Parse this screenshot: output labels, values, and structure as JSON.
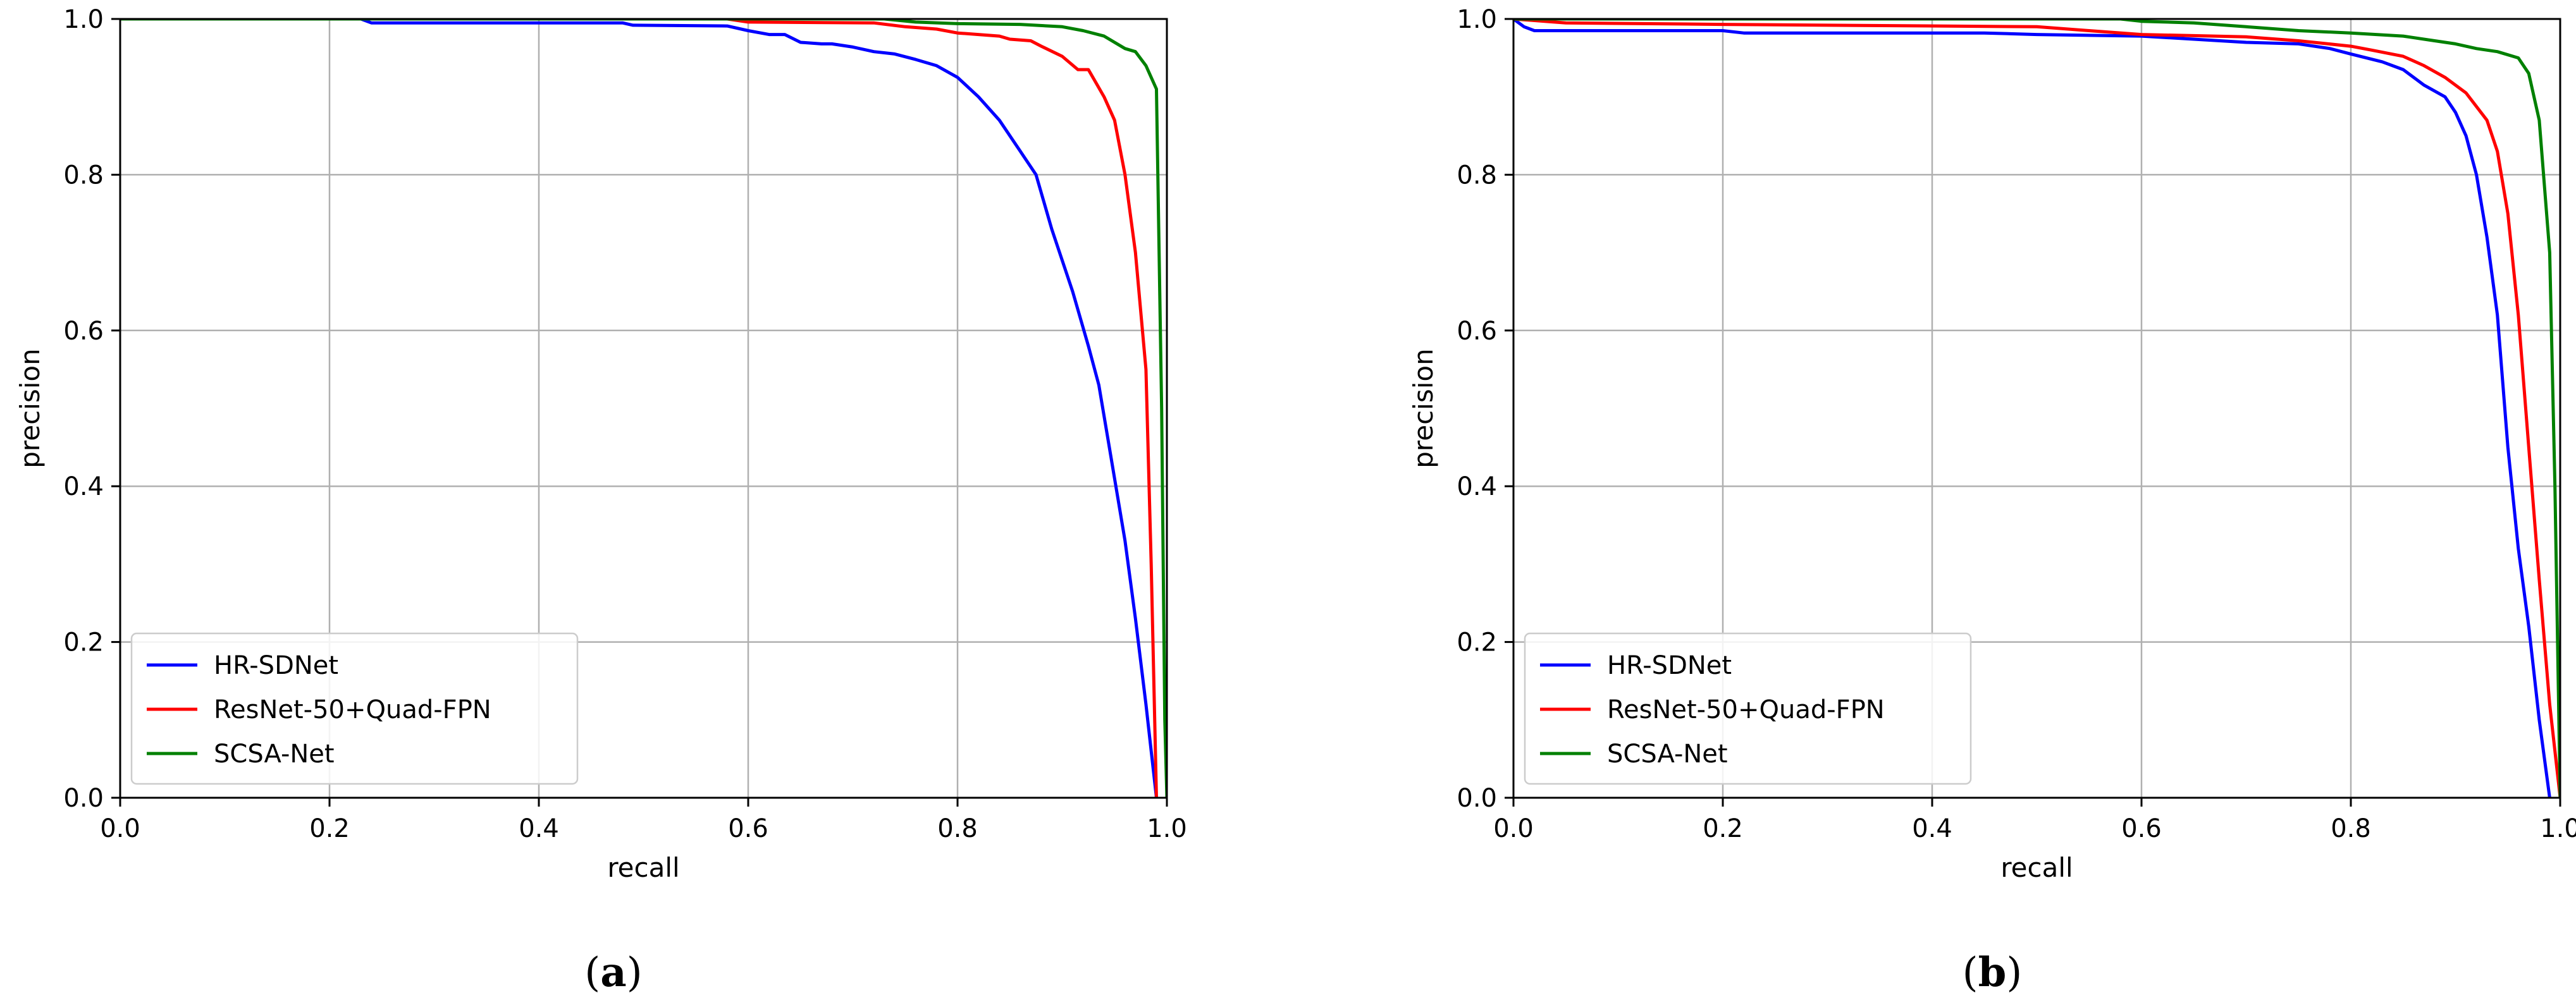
{
  "chart_data": [
    {
      "type": "line",
      "panel_label": "a",
      "xlabel": "recall",
      "ylabel": "precision",
      "xlim": [
        0.0,
        1.0
      ],
      "ylim": [
        0.0,
        1.0
      ],
      "xticks": [
        "0.0",
        "0.2",
        "0.4",
        "0.6",
        "0.8",
        "1.0"
      ],
      "yticks": [
        "0.0",
        "0.2",
        "0.4",
        "0.6",
        "0.8",
        "1.0"
      ],
      "grid": true,
      "legend_position": "lower-left",
      "series": [
        {
          "name": "HR-SDNet",
          "color": "#0000ff",
          "points": [
            [
              0.0,
              1.0
            ],
            [
              0.23,
              1.0
            ],
            [
              0.24,
              0.995
            ],
            [
              0.48,
              0.995
            ],
            [
              0.49,
              0.992
            ],
            [
              0.58,
              0.991
            ],
            [
              0.6,
              0.985
            ],
            [
              0.62,
              0.98
            ],
            [
              0.635,
              0.98
            ],
            [
              0.65,
              0.97
            ],
            [
              0.67,
              0.968
            ],
            [
              0.68,
              0.968
            ],
            [
              0.7,
              0.964
            ],
            [
              0.72,
              0.958
            ],
            [
              0.74,
              0.955
            ],
            [
              0.76,
              0.948
            ],
            [
              0.78,
              0.94
            ],
            [
              0.8,
              0.925
            ],
            [
              0.82,
              0.9
            ],
            [
              0.84,
              0.87
            ],
            [
              0.86,
              0.83
            ],
            [
              0.875,
              0.8
            ],
            [
              0.89,
              0.73
            ],
            [
              0.91,
              0.65
            ],
            [
              0.925,
              0.58
            ],
            [
              0.935,
              0.53
            ],
            [
              0.945,
              0.45
            ],
            [
              0.96,
              0.33
            ],
            [
              0.97,
              0.23
            ],
            [
              0.98,
              0.12
            ],
            [
              0.99,
              0.0
            ]
          ],
          "linewidth": 5
        },
        {
          "name": "ResNet-50+Quad-FPN",
          "color": "#ff0000",
          "points": [
            [
              0.0,
              1.0
            ],
            [
              0.3,
              1.0
            ],
            [
              0.58,
              1.0
            ],
            [
              0.6,
              0.996
            ],
            [
              0.72,
              0.995
            ],
            [
              0.75,
              0.99
            ],
            [
              0.78,
              0.987
            ],
            [
              0.8,
              0.982
            ],
            [
              0.82,
              0.98
            ],
            [
              0.84,
              0.978
            ],
            [
              0.85,
              0.974
            ],
            [
              0.87,
              0.972
            ],
            [
              0.88,
              0.965
            ],
            [
              0.9,
              0.952
            ],
            [
              0.915,
              0.935
            ],
            [
              0.925,
              0.935
            ],
            [
              0.94,
              0.9
            ],
            [
              0.95,
              0.87
            ],
            [
              0.96,
              0.8
            ],
            [
              0.97,
              0.7
            ],
            [
              0.98,
              0.55
            ],
            [
              0.985,
              0.3
            ],
            [
              0.99,
              0.0
            ]
          ],
          "linewidth": 5
        },
        {
          "name": "SCSA-Net",
          "color": "#008000",
          "points": [
            [
              0.0,
              1.0
            ],
            [
              0.3,
              1.0
            ],
            [
              0.73,
              1.0
            ],
            [
              0.76,
              0.996
            ],
            [
              0.8,
              0.994
            ],
            [
              0.86,
              0.993
            ],
            [
              0.9,
              0.99
            ],
            [
              0.92,
              0.985
            ],
            [
              0.94,
              0.978
            ],
            [
              0.96,
              0.962
            ],
            [
              0.97,
              0.958
            ],
            [
              0.98,
              0.94
            ],
            [
              0.99,
              0.91
            ],
            [
              0.995,
              0.5
            ],
            [
              0.998,
              0.1
            ],
            [
              1.0,
              0.0
            ]
          ],
          "linewidth": 5
        }
      ]
    },
    {
      "type": "line",
      "panel_label": "b",
      "xlabel": "recall",
      "ylabel": "precision",
      "xlim": [
        0.0,
        1.0
      ],
      "ylim": [
        0.0,
        1.0
      ],
      "xticks": [
        "0.0",
        "0.2",
        "0.4",
        "0.6",
        "0.8",
        "1.0"
      ],
      "yticks": [
        "0.0",
        "0.2",
        "0.4",
        "0.6",
        "0.8",
        "1.0"
      ],
      "grid": true,
      "legend_position": "lower-left",
      "series": [
        {
          "name": "HR-SDNet",
          "color": "#0000ff",
          "points": [
            [
              0.0,
              1.0
            ],
            [
              0.01,
              0.99
            ],
            [
              0.02,
              0.985
            ],
            [
              0.2,
              0.985
            ],
            [
              0.22,
              0.982
            ],
            [
              0.45,
              0.982
            ],
            [
              0.5,
              0.98
            ],
            [
              0.6,
              0.978
            ],
            [
              0.7,
              0.97
            ],
            [
              0.75,
              0.968
            ],
            [
              0.78,
              0.962
            ],
            [
              0.8,
              0.955
            ],
            [
              0.83,
              0.945
            ],
            [
              0.85,
              0.935
            ],
            [
              0.87,
              0.915
            ],
            [
              0.89,
              0.9
            ],
            [
              0.9,
              0.88
            ],
            [
              0.91,
              0.85
            ],
            [
              0.92,
              0.8
            ],
            [
              0.93,
              0.72
            ],
            [
              0.94,
              0.62
            ],
            [
              0.95,
              0.45
            ],
            [
              0.96,
              0.32
            ],
            [
              0.97,
              0.22
            ],
            [
              0.98,
              0.1
            ],
            [
              0.99,
              0.0
            ]
          ],
          "linewidth": 5
        },
        {
          "name": "ResNet-50+Quad-FPN",
          "color": "#ff0000",
          "points": [
            [
              0.0,
              1.0
            ],
            [
              0.05,
              0.995
            ],
            [
              0.2,
              0.993
            ],
            [
              0.5,
              0.99
            ],
            [
              0.55,
              0.985
            ],
            [
              0.6,
              0.98
            ],
            [
              0.7,
              0.977
            ],
            [
              0.75,
              0.972
            ],
            [
              0.8,
              0.965
            ],
            [
              0.82,
              0.96
            ],
            [
              0.85,
              0.952
            ],
            [
              0.87,
              0.94
            ],
            [
              0.89,
              0.925
            ],
            [
              0.91,
              0.905
            ],
            [
              0.93,
              0.87
            ],
            [
              0.94,
              0.83
            ],
            [
              0.95,
              0.75
            ],
            [
              0.96,
              0.62
            ],
            [
              0.97,
              0.45
            ],
            [
              0.98,
              0.28
            ],
            [
              0.99,
              0.12
            ],
            [
              1.0,
              0.0
            ]
          ],
          "linewidth": 5
        },
        {
          "name": "SCSA-Net",
          "color": "#008000",
          "points": [
            [
              0.0,
              1.0
            ],
            [
              0.2,
              1.0
            ],
            [
              0.58,
              1.0
            ],
            [
              0.6,
              0.997
            ],
            [
              0.65,
              0.995
            ],
            [
              0.7,
              0.99
            ],
            [
              0.75,
              0.985
            ],
            [
              0.8,
              0.982
            ],
            [
              0.85,
              0.978
            ],
            [
              0.88,
              0.972
            ],
            [
              0.9,
              0.968
            ],
            [
              0.92,
              0.962
            ],
            [
              0.94,
              0.958
            ],
            [
              0.96,
              0.95
            ],
            [
              0.97,
              0.93
            ],
            [
              0.98,
              0.87
            ],
            [
              0.99,
              0.7
            ],
            [
              0.995,
              0.4
            ],
            [
              1.0,
              0.0
            ]
          ],
          "linewidth": 5
        }
      ]
    }
  ]
}
